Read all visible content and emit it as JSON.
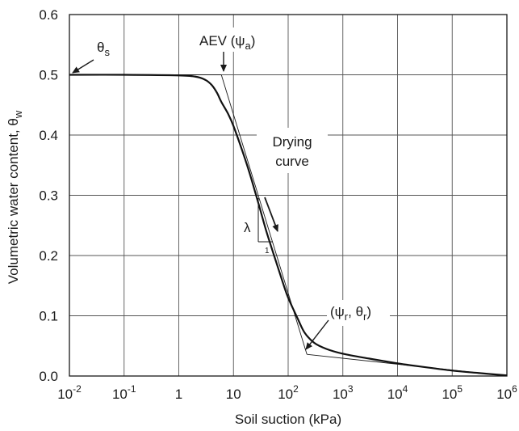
{
  "chart_data": {
    "type": "line",
    "xscale": "log",
    "xlabel": "Soil suction (kPa)",
    "ylabel": "Volumetric water content, θw",
    "ylabel_main": "Volumetric water content, θ",
    "ylabel_sub": "w",
    "xlim": [
      0.01,
      1000000
    ],
    "ylim": [
      0,
      0.6
    ],
    "grid": true,
    "x_ticks": [
      {
        "base": "10",
        "exp": "-2",
        "value": 0.01
      },
      {
        "base": "10",
        "exp": "-1",
        "value": 0.1
      },
      {
        "base": "1",
        "exp": "",
        "value": 1
      },
      {
        "base": "10",
        "exp": "",
        "value": 10
      },
      {
        "base": "10",
        "exp": "2",
        "value": 100
      },
      {
        "base": "10",
        "exp": "3",
        "value": 1000
      },
      {
        "base": "10",
        "exp": "4",
        "value": 10000
      },
      {
        "base": "10",
        "exp": "5",
        "value": 100000
      },
      {
        "base": "10",
        "exp": "6",
        "value": 1000000
      }
    ],
    "y_ticks": [
      "0.0",
      "0.1",
      "0.2",
      "0.3",
      "0.4",
      "0.5",
      "0.6"
    ],
    "series": [
      {
        "x": [
          0.01,
          0.1,
          1,
          2,
          3,
          4,
          5,
          6,
          8,
          10,
          15,
          20,
          30,
          40,
          60,
          80,
          100,
          150,
          200,
          300,
          500,
          1000,
          3000,
          10000,
          30000,
          100000,
          300000,
          1000000
        ],
        "y": [
          0.5,
          0.5,
          0.499,
          0.497,
          0.492,
          0.483,
          0.47,
          0.455,
          0.435,
          0.415,
          0.37,
          0.335,
          0.28,
          0.24,
          0.19,
          0.155,
          0.13,
          0.095,
          0.072,
          0.055,
          0.045,
          0.037,
          0.029,
          0.021,
          0.015,
          0.009,
          0.005,
          0.001
        ]
      }
    ],
    "tangent_lines": [
      {
        "x": [
          0.01,
          6.0
        ],
        "y": [
          0.5,
          0.5
        ]
      },
      {
        "x": [
          6.0,
          220
        ],
        "y": [
          0.5,
          0.036
        ]
      },
      {
        "x": [
          220,
          1000000
        ],
        "y": [
          0.036,
          0.0
        ]
      }
    ],
    "slope_triangle": {
      "label": "λ",
      "x": [
        20,
        40
      ],
      "y": [
        0.23,
        0.22
      ]
    },
    "annotations": {
      "theta_s": {
        "main": "θ",
        "sub": "s"
      },
      "aev": {
        "main": "AEV (ψ",
        "sub": "a",
        "close": ")"
      },
      "drying_line1": "Drying",
      "drying_line2": "curve",
      "residual": {
        "open": "(ψ",
        "sub1": "r",
        "mid": ", θ",
        "sub2": "r",
        "close": ")"
      }
    }
  }
}
